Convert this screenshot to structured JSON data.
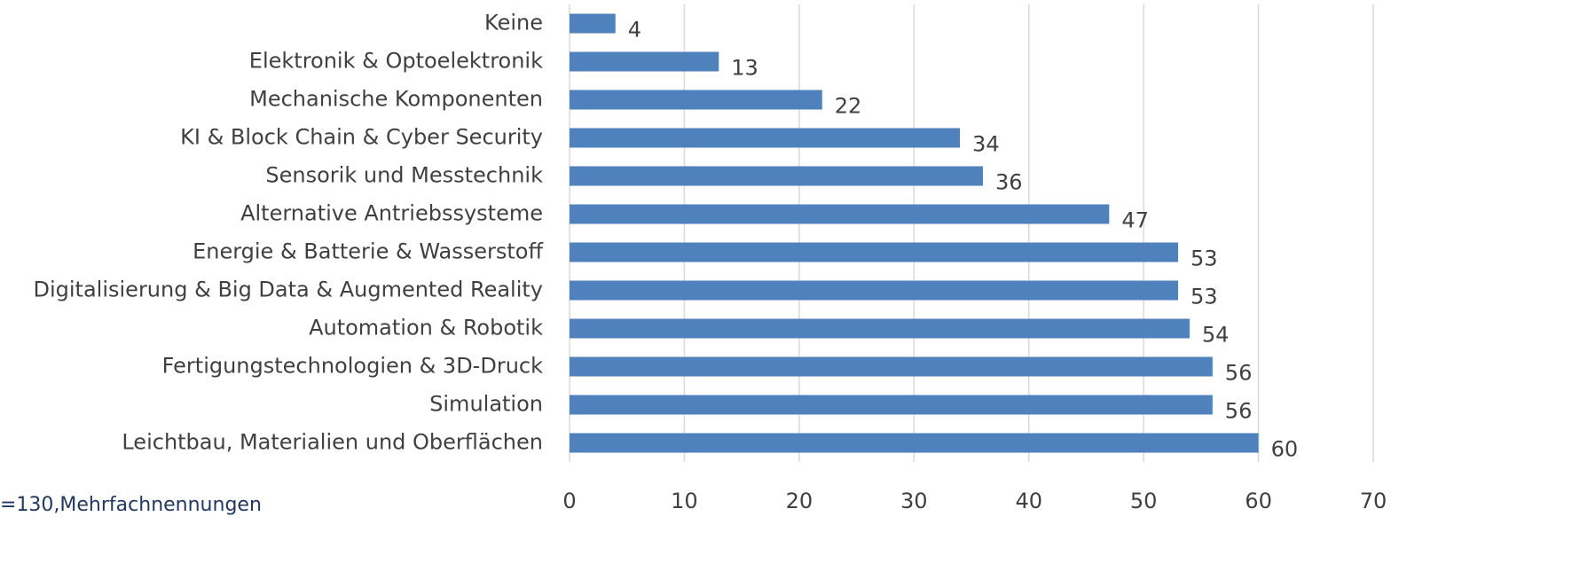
{
  "chart_data": {
    "type": "bar",
    "orientation": "horizontal",
    "categories": [
      "Keine",
      "Elektronik & Optoelektronik",
      "Mechanische Komponenten",
      "KI & Block Chain & Cyber Security",
      "Sensorik und Messtechnik",
      "Alternative Antriebssysteme",
      "Energie & Batterie & Wasserstoff",
      "Digitalisierung & Big Data & Augmented Reality",
      "Automation & Robotik",
      "Fertigungstechnologien & 3D-Druck",
      "Simulation",
      "Leichtbau, Materialien und Oberflächen"
    ],
    "values": [
      4,
      13,
      22,
      34,
      36,
      47,
      53,
      53,
      54,
      56,
      56,
      60
    ],
    "color": "#4f81bd",
    "xlim": [
      0,
      70
    ],
    "xticks": [
      0,
      10,
      20,
      30,
      40,
      50,
      60,
      70
    ],
    "grid": true,
    "footnote": "=130,Mehrfachnennungen"
  }
}
